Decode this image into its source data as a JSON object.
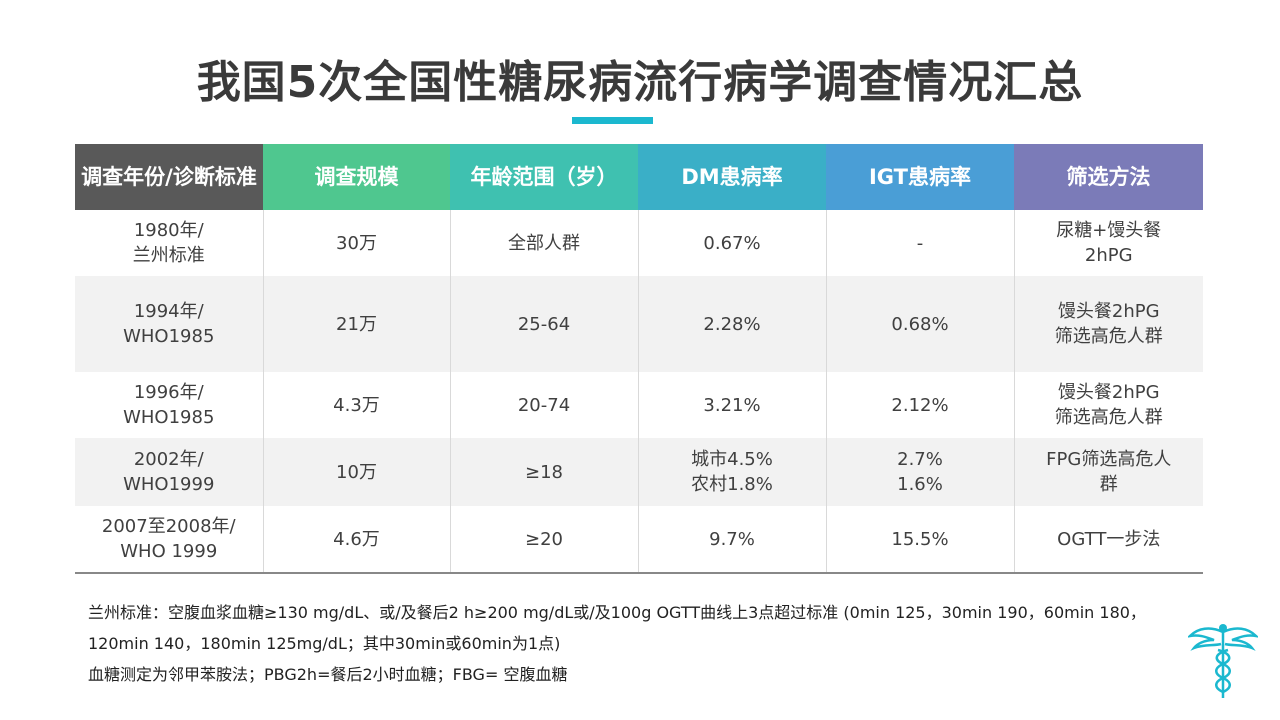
{
  "title": "我国5次全国性糖尿病流行病学调查情况汇总",
  "colors": {
    "accent": "#1bb8cf",
    "headers": [
      "#595959",
      "#4fc78f",
      "#3fc1b0",
      "#3aafc7",
      "#4a9ed6",
      "#7b7bb8"
    ]
  },
  "table": {
    "headers": [
      "调查年份/诊断标准",
      "调查规模",
      "年龄范围（岁）",
      "DM患病率",
      "IGT患病率",
      "筛选方法"
    ],
    "rows": [
      [
        "1980年/\n兰州标准",
        "30万",
        "全部人群",
        "0.67%",
        "-",
        "尿糖+馒头餐\n2hPG"
      ],
      [
        "1994年/\nWHO1985",
        "21万",
        "25-64",
        "2.28%",
        "0.68%",
        "馒头餐2hPG\n筛选高危人群"
      ],
      [
        "1996年/\nWHO1985",
        "4.3万",
        "20-74",
        "3.21%",
        "2.12%",
        "馒头餐2hPG\n筛选高危人群"
      ],
      [
        "2002年/\nWHO1999",
        "10万",
        "≥18",
        "城市4.5%\n农村1.8%",
        "2.7%\n1.6%",
        "FPG筛选高危人\n群"
      ],
      [
        "2007至2008年/\nWHO 1999",
        "4.6万",
        "≥20",
        "9.7%",
        "15.5%",
        "OGTT一步法"
      ]
    ]
  },
  "notes": {
    "line1": "兰州标准：空腹血浆血糖≥130 mg/dL、或/及餐后2 h≥200 mg/dL或/及100g OGTT曲线上3点超过标准 (0min 125，30min 190，60min 180，120min 140，180min 125mg/dL；其中30min或60min为1点)",
    "line2": "血糖测定为邻甲苯胺法；PBG2h=餐后2小时血糖；FBG= 空腹血糖"
  },
  "icons": {
    "logo": "caduceus-icon"
  }
}
